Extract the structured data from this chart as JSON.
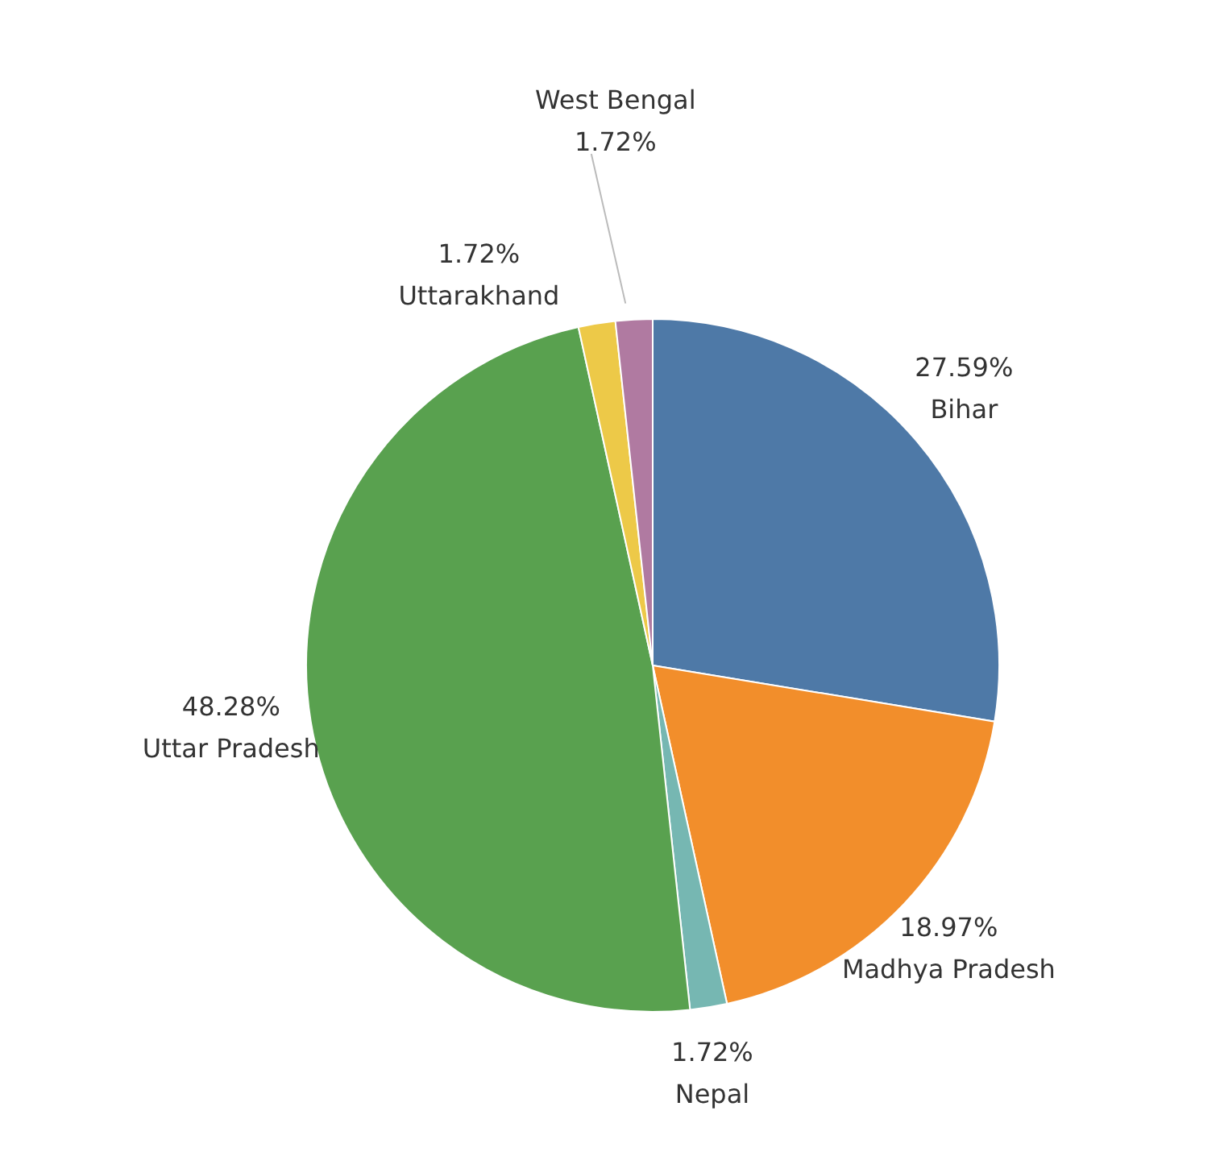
{
  "chart_data": {
    "type": "pie",
    "categories": [
      "Bihar",
      "Madhya Pradesh",
      "Nepal",
      "Uttar Pradesh",
      "Uttarakhand",
      "West Bengal"
    ],
    "values": [
      27.59,
      18.97,
      1.72,
      48.28,
      1.72,
      1.72
    ],
    "colors": [
      "#4e79a7",
      "#f28e2b",
      "#76b7b2",
      "#59a14f",
      "#edc948",
      "#b07aa1"
    ],
    "value_labels": [
      "27.59%",
      "18.97%",
      "1.72%",
      "48.28%",
      "1.72%",
      "1.72%"
    ],
    "legend": false
  }
}
